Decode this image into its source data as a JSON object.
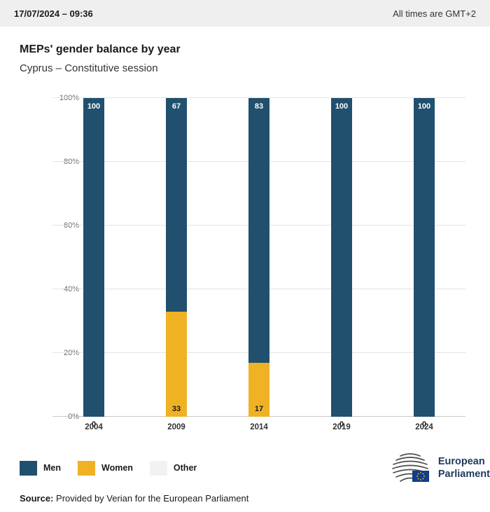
{
  "header": {
    "datetime": "17/07/2024 – 09:36",
    "timezone_note": "All times are GMT+2"
  },
  "title": "MEPs' gender balance by year",
  "subtitle": "Cyprus – Constitutive session",
  "chart_data": {
    "type": "bar",
    "stacked": true,
    "title": "MEPs' gender balance by year",
    "subtitle": "Cyprus – Constitutive session",
    "categories": [
      "2004",
      "2009",
      "2014",
      "2019",
      "2024"
    ],
    "series": [
      {
        "name": "Men",
        "color": "#21506e",
        "values": [
          100,
          67,
          83,
          100,
          100
        ]
      },
      {
        "name": "Women",
        "color": "#efb225",
        "values": [
          0,
          33,
          17,
          0,
          0
        ]
      },
      {
        "name": "Other",
        "color": "#f2f2f2",
        "values": [
          0,
          0,
          0,
          0,
          0
        ]
      }
    ],
    "ylim": [
      0,
      100
    ],
    "yticks": [
      "0%",
      "20%",
      "40%",
      "60%",
      "80%",
      "100%"
    ],
    "grid": true,
    "legend_position": "bottom",
    "value_label_colors": {
      "men": "#ffffff",
      "women": "#1a1a1a"
    }
  },
  "logo": {
    "line1": "European",
    "line2": "Parliament"
  },
  "source": {
    "label": "Source:",
    "text": " Provided by Verian for the European Parliament"
  }
}
